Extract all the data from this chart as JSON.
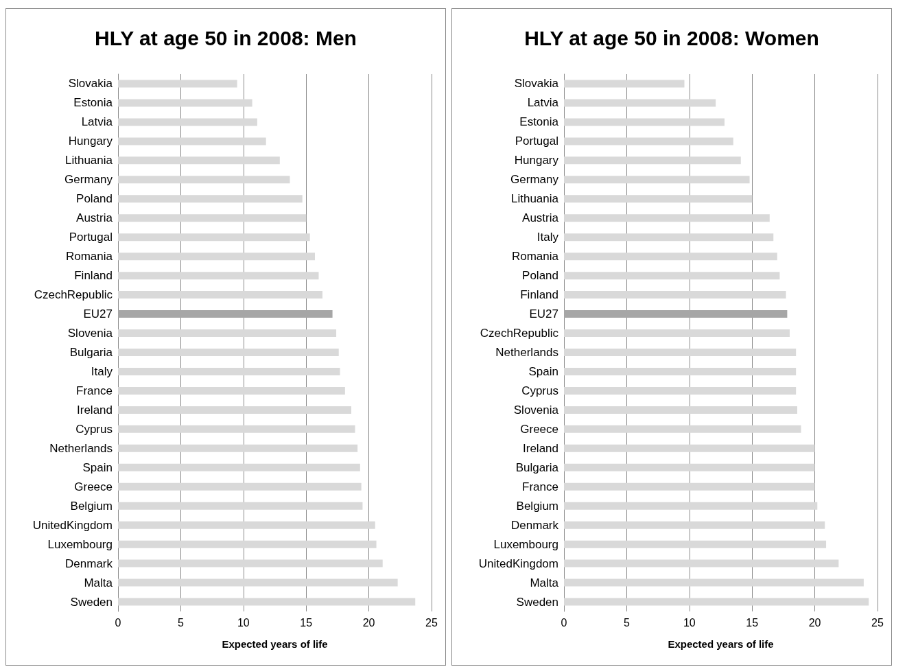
{
  "chart_data": [
    {
      "type": "bar",
      "orientation": "horizontal",
      "title": "HLY at age 50 in 2008: Men",
      "xlabel": "Expected years of life",
      "categories": [
        "Slovakia",
        "Estonia",
        "Latvia",
        "Hungary",
        "Lithuania",
        "Germany",
        "Poland",
        "Austria",
        "Portugal",
        "Romania",
        "Finland",
        "CzechRepublic",
        "EU27",
        "Slovenia",
        "Bulgaria",
        "Italy",
        "France",
        "Ireland",
        "Cyprus",
        "Netherlands",
        "Spain",
        "Greece",
        "Belgium",
        "UnitedKingdom",
        "Luxembourg",
        "Denmark",
        "Malta",
        "Sweden"
      ],
      "values": [
        9.5,
        10.7,
        11.1,
        11.8,
        12.9,
        13.7,
        14.7,
        15.0,
        15.3,
        15.7,
        16.0,
        16.3,
        17.1,
        17.4,
        17.6,
        17.7,
        18.1,
        18.6,
        18.9,
        19.1,
        19.3,
        19.4,
        19.5,
        20.5,
        20.6,
        21.1,
        22.3,
        23.7
      ],
      "colors": [
        "#d9d9d9",
        "#d9d9d9",
        "#d9d9d9",
        "#d9d9d9",
        "#d9d9d9",
        "#d9d9d9",
        "#d9d9d9",
        "#d9d9d9",
        "#d9d9d9",
        "#d9d9d9",
        "#d9d9d9",
        "#d9d9d9",
        "#a6a6a6",
        "#d9d9d9",
        "#d9d9d9",
        "#d9d9d9",
        "#d9d9d9",
        "#d9d9d9",
        "#d9d9d9",
        "#d9d9d9",
        "#d9d9d9",
        "#d9d9d9",
        "#d9d9d9",
        "#d9d9d9",
        "#d9d9d9",
        "#d9d9d9",
        "#d9d9d9",
        "#d9d9d9"
      ],
      "xlim": [
        0,
        25
      ],
      "xticks": [
        0,
        5,
        10,
        15,
        20,
        25
      ],
      "grid": "x"
    },
    {
      "type": "bar",
      "orientation": "horizontal",
      "title": "HLY at age 50 in 2008: Women",
      "xlabel": "Expected years of life",
      "categories": [
        "Slovakia",
        "Latvia",
        "Estonia",
        "Portugal",
        "Hungary",
        "Germany",
        "Lithuania",
        "Austria",
        "Italy",
        "Romania",
        "Poland",
        "Finland",
        "EU27",
        "CzechRepublic",
        "Netherlands",
        "Spain",
        "Cyprus",
        "Slovenia",
        "Greece",
        "Ireland",
        "Bulgaria",
        "France",
        "Belgium",
        "Denmark",
        "Luxembourg",
        "UnitedKingdom",
        "Malta",
        "Sweden"
      ],
      "values": [
        9.6,
        12.1,
        12.8,
        13.5,
        14.1,
        14.8,
        15.0,
        16.4,
        16.7,
        17.0,
        17.2,
        17.7,
        17.8,
        18.0,
        18.5,
        18.5,
        18.5,
        18.6,
        18.9,
        20.0,
        20.0,
        20.0,
        20.2,
        20.8,
        20.9,
        21.9,
        23.9,
        24.3
      ],
      "colors": [
        "#d9d9d9",
        "#d9d9d9",
        "#d9d9d9",
        "#d9d9d9",
        "#d9d9d9",
        "#d9d9d9",
        "#d9d9d9",
        "#d9d9d9",
        "#d9d9d9",
        "#d9d9d9",
        "#d9d9d9",
        "#d9d9d9",
        "#a6a6a6",
        "#d9d9d9",
        "#d9d9d9",
        "#d9d9d9",
        "#d9d9d9",
        "#d9d9d9",
        "#d9d9d9",
        "#d9d9d9",
        "#d9d9d9",
        "#d9d9d9",
        "#d9d9d9",
        "#d9d9d9",
        "#d9d9d9",
        "#d9d9d9",
        "#d9d9d9",
        "#d9d9d9"
      ],
      "xlim": [
        0,
        25
      ],
      "xticks": [
        0,
        5,
        10,
        15,
        20,
        25
      ],
      "grid": "x"
    }
  ]
}
